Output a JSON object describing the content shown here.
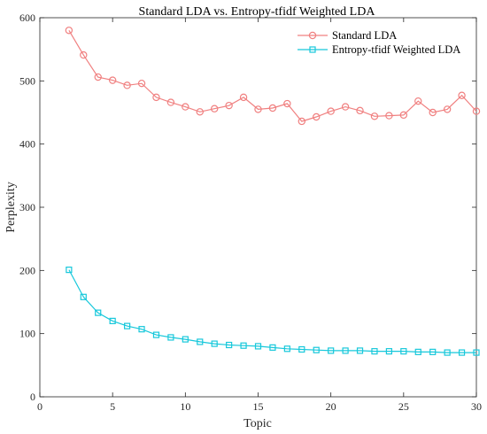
{
  "chart_data": {
    "type": "line",
    "title": "Standard LDA vs. Entropy-tfidf Weighted LDA",
    "xlabel": "Topic",
    "ylabel": "Perplexity",
    "xlim": [
      0,
      30
    ],
    "ylim": [
      0,
      600
    ],
    "xticks": [
      "0",
      "5",
      "10",
      "15",
      "20",
      "25",
      "30"
    ],
    "yticks": [
      "0",
      "100",
      "200",
      "300",
      "400",
      "500",
      "600"
    ],
    "grid": false,
    "legend_position": "top-right",
    "x": [
      2,
      3,
      4,
      5,
      6,
      7,
      8,
      9,
      10,
      11,
      12,
      13,
      14,
      15,
      16,
      17,
      18,
      19,
      20,
      21,
      22,
      23,
      24,
      25,
      26,
      27,
      28,
      29,
      30
    ],
    "series": [
      {
        "name": "Standard LDA",
        "color": "#f08080",
        "marker": "circle",
        "values": [
          580,
          541,
          506,
          501,
          493,
          496,
          474,
          466,
          459,
          451,
          456,
          461,
          474,
          455,
          457,
          464,
          436,
          443,
          452,
          459,
          453,
          444,
          445,
          446,
          468,
          450,
          455,
          477,
          452
        ]
      },
      {
        "name": "Entropy-tfidf Weighted LDA",
        "color": "#17c8db",
        "marker": "square",
        "values": [
          201,
          158,
          133,
          120,
          112,
          107,
          98,
          94,
          91,
          87,
          84,
          82,
          81,
          80,
          78,
          76,
          75,
          74,
          73,
          73,
          73,
          72,
          72,
          72,
          71,
          71,
          70,
          70,
          70
        ]
      }
    ]
  }
}
